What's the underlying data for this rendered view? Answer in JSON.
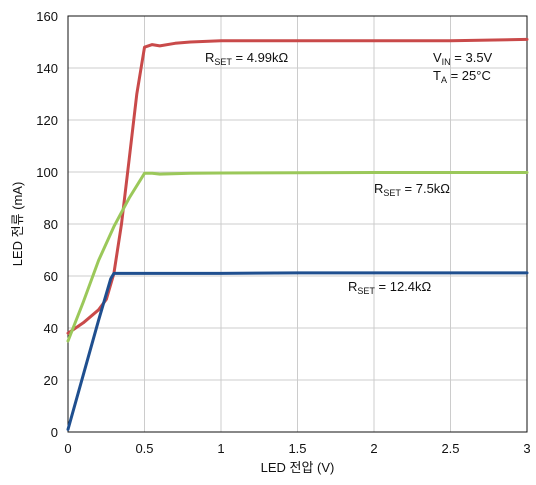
{
  "chart_data": {
    "type": "line",
    "xlabel": "LED 전압 (V)",
    "ylabel": "LED 전류 (mA)",
    "xlim": [
      0,
      3
    ],
    "ylim": [
      0,
      160
    ],
    "xticks": [
      0,
      0.5,
      1,
      1.5,
      2,
      2.5,
      3
    ],
    "xtick_labels": [
      "0",
      "0.5",
      "1",
      "1.5",
      "2",
      "2.5",
      "3"
    ],
    "yticks": [
      0,
      20,
      40,
      60,
      80,
      100,
      120,
      140,
      160
    ],
    "ytick_labels": [
      "0",
      "20",
      "40",
      "60",
      "80",
      "100",
      "120",
      "140",
      "160"
    ],
    "grid": true,
    "legend": "none",
    "series": [
      {
        "name": "RSET = 4.99kΩ",
        "color": "#c94a4a",
        "x": [
          0,
          0.1,
          0.2,
          0.25,
          0.3,
          0.35,
          0.4,
          0.45,
          0.5,
          0.55,
          0.6,
          0.7,
          0.8,
          1.0,
          1.5,
          2.0,
          2.5,
          3.0
        ],
        "y": [
          38,
          42,
          47,
          51,
          61,
          80,
          105,
          130,
          148,
          149,
          148.5,
          149.5,
          150,
          150.5,
          150.5,
          150.5,
          150.5,
          151
        ]
      },
      {
        "name": "RSET = 7.5kΩ",
        "color": "#9bc85a",
        "x": [
          0,
          0.1,
          0.2,
          0.3,
          0.4,
          0.5,
          0.55,
          0.6,
          0.8,
          1.0,
          1.5,
          2.0,
          2.5,
          3.0
        ],
        "y": [
          35,
          50,
          66,
          79,
          90,
          99.5,
          99.5,
          99.2,
          99.5,
          99.6,
          99.7,
          99.8,
          99.8,
          99.8
        ]
      },
      {
        "name": "RSET = 12.4kΩ",
        "color": "#1f4f8f",
        "x": [
          0,
          0.1,
          0.2,
          0.28,
          0.3,
          0.5,
          1.0,
          1.5,
          2.0,
          2.5,
          3.0
        ],
        "y": [
          1,
          22,
          43,
          59,
          61,
          61,
          61,
          61.2,
          61.2,
          61.2,
          61.2
        ]
      }
    ],
    "annotations": {
      "r1": {
        "main": "R",
        "sub": "SET",
        "rest": " = 4.99kΩ"
      },
      "r2": {
        "main": "R",
        "sub": "SET",
        "rest": " = 7.5kΩ"
      },
      "r3": {
        "main": "R",
        "sub": "SET",
        "rest": " = 12.4kΩ"
      },
      "vin": {
        "main": "V",
        "sub": "IN",
        "rest": " = 3.5V"
      },
      "ta": {
        "main": "T",
        "sub": "A",
        "rest": " = 25°C"
      }
    }
  }
}
